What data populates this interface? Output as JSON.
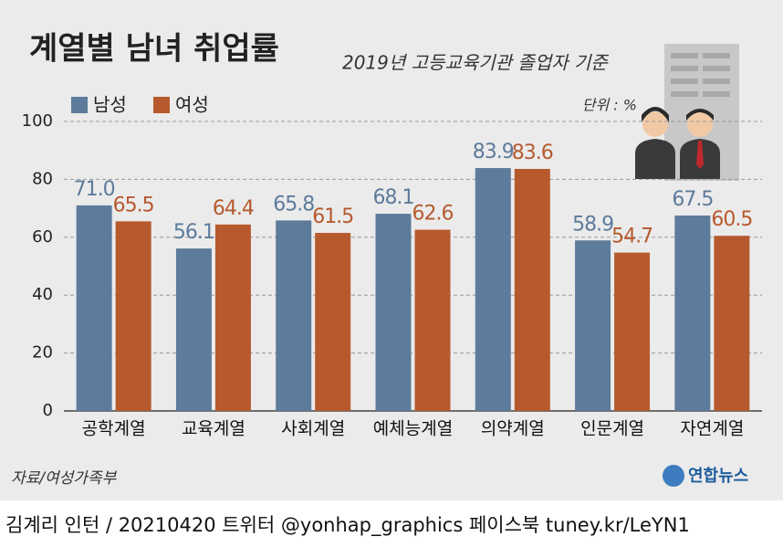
{
  "chart_data": {
    "type": "bar",
    "title": "계열별 남녀 취업률",
    "subtitle": "2019년 고등교육기관 졸업자 기준",
    "unit_label": "단위 : %",
    "source": "자료/여성가족부",
    "logo": "연합뉴스",
    "credit": "김계리 인턴 / 20210420  트위터 @yonhap_graphics  페이스북 tuney.kr/LeYN1",
    "categories": [
      "공학계열",
      "교육계열",
      "사회계열",
      "예체능계열",
      "의약계열",
      "인문계열",
      "자연계열"
    ],
    "series": [
      {
        "name": "남성",
        "color": "#5d7b9b",
        "values": [
          71.0,
          56.1,
          65.8,
          68.1,
          83.9,
          58.9,
          67.5
        ],
        "value_labels": [
          "71.0",
          "56.1",
          "65.8",
          "68.1",
          "83.9",
          "58.9",
          "67.5"
        ]
      },
      {
        "name": "여성",
        "color": "#b65a2e",
        "values": [
          65.5,
          64.4,
          61.5,
          62.6,
          83.6,
          54.7,
          60.5
        ],
        "value_labels": [
          "65.5",
          "64.4",
          "61.5",
          "62.6",
          "83.6",
          "54.7",
          "60.5"
        ]
      }
    ],
    "ylim": [
      0,
      100
    ],
    "yticks": [
      0,
      20,
      40,
      60,
      80,
      100
    ],
    "grid": true,
    "legend": "top-left"
  }
}
